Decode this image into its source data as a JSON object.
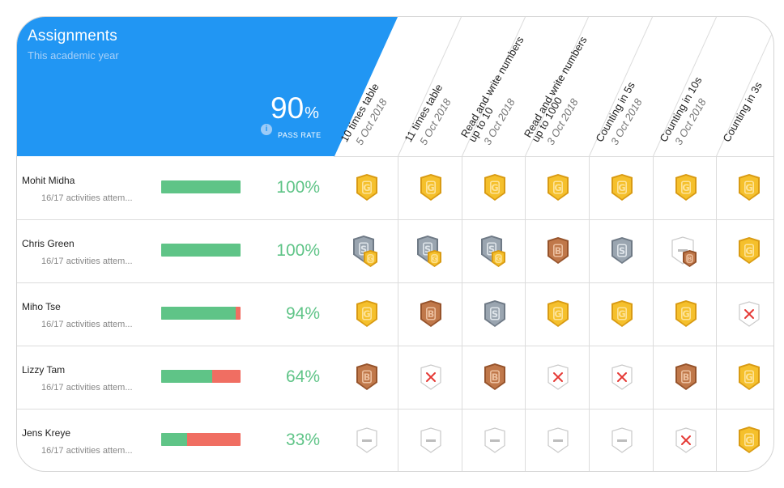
{
  "header": {
    "title": "Assignments",
    "subtitle": "This academic year",
    "pass_rate_value": "90",
    "pass_rate_unit": "%",
    "pass_rate_label": "PASS RATE",
    "info_icon": "i",
    "info_icon_name": "info-icon"
  },
  "colors": {
    "accent": "#2196f3",
    "progress_good": "#5fc487",
    "progress_bad": "#f06e62",
    "gold": "#f5c02c",
    "silver": "#9aa5b0",
    "bronze": "#c0784a",
    "fail": "#e53935"
  },
  "badge_legend": {
    "G": "gold-badge",
    "S": "silver-badge",
    "B": "bronze-badge",
    "SG": "silver-badge-with-gold",
    "DB": "dash-badge-with-bronze",
    "X": "failed-badge",
    "D": "not-attempted-badge"
  },
  "assignments": [
    {
      "title_lines": [
        "10 times table"
      ],
      "date": "5 Oct 2018"
    },
    {
      "title_lines": [
        "11 times table"
      ],
      "date": "5 Oct 2018"
    },
    {
      "title_lines": [
        "Read and write numbers",
        "up to 10"
      ],
      "date": "3 Oct 2018"
    },
    {
      "title_lines": [
        "Read and write numbers",
        "up to 1000"
      ],
      "date": "3 Oct 2018"
    },
    {
      "title_lines": [
        "Counting in 5s"
      ],
      "date": "3 Oct 2018"
    },
    {
      "title_lines": [
        "Counting in 10s"
      ],
      "date": "3 Oct 2018"
    },
    {
      "title_lines": [
        "Counting in 3s"
      ],
      "date": ""
    }
  ],
  "students": [
    {
      "name": "Mohit Midha",
      "activities": "16/17 activities attem...",
      "progress": 1.0,
      "percent": "100%",
      "badges": [
        "G",
        "G",
        "G",
        "G",
        "G",
        "G",
        "G"
      ]
    },
    {
      "name": "Chris Green",
      "activities": "16/17 activities attem...",
      "progress": 1.0,
      "percent": "100%",
      "badges": [
        "SG",
        "SG",
        "SG",
        "B",
        "S",
        "DB",
        "G"
      ]
    },
    {
      "name": "Miho Tse",
      "activities": "16/17 activities attem...",
      "progress": 0.94,
      "percent": "94%",
      "badges": [
        "G",
        "B",
        "S",
        "G",
        "G",
        "G",
        "X"
      ]
    },
    {
      "name": "Lizzy Tam",
      "activities": "16/17 activities attem...",
      "progress": 0.64,
      "percent": "64%",
      "badges": [
        "B",
        "X",
        "B",
        "X",
        "X",
        "B",
        "G"
      ]
    },
    {
      "name": "Jens Kreye",
      "activities": "16/17 activities attem...",
      "progress": 0.33,
      "percent": "33%",
      "badges": [
        "D",
        "D",
        "D",
        "D",
        "D",
        "X",
        "G"
      ]
    }
  ]
}
